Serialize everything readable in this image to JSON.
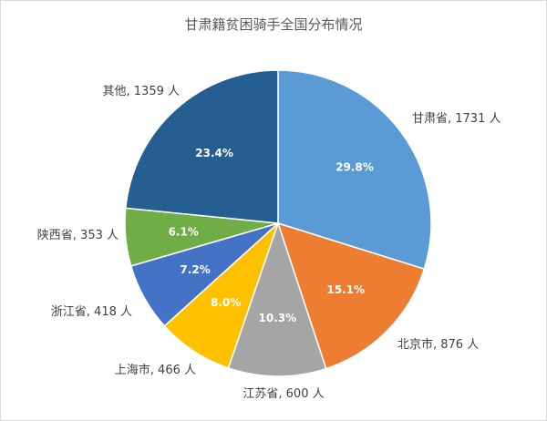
{
  "chart_data": {
    "type": "pie",
    "title": "甘肃籍贫困骑手全国分布情况",
    "slices": [
      {
        "label": "甘肃省, 1731 人",
        "value": 1731,
        "percent_label": "29.8%",
        "color": "#5b9bd5"
      },
      {
        "label": "北京市, 876 人",
        "value": 876,
        "percent_label": "15.1%",
        "color": "#ed7d31"
      },
      {
        "label": "江苏省, 600 人",
        "value": 600,
        "percent_label": "10.3%",
        "color": "#a5a5a5"
      },
      {
        "label": "上海市, 466 人",
        "value": 466,
        "percent_label": "8.0%",
        "color": "#ffc000"
      },
      {
        "label": "浙江省, 418 人",
        "value": 418,
        "percent_label": "7.2%",
        "color": "#4472c4"
      },
      {
        "label": "陕西省, 353 人",
        "value": 353,
        "percent_label": "6.1%",
        "color": "#70ad47"
      },
      {
        "label": "其他, 1359 人",
        "value": 1359,
        "percent_label": "23.4%",
        "color": "#255e91"
      }
    ],
    "start_angle_deg": 0,
    "direction": "clockwise",
    "legend": "none"
  }
}
